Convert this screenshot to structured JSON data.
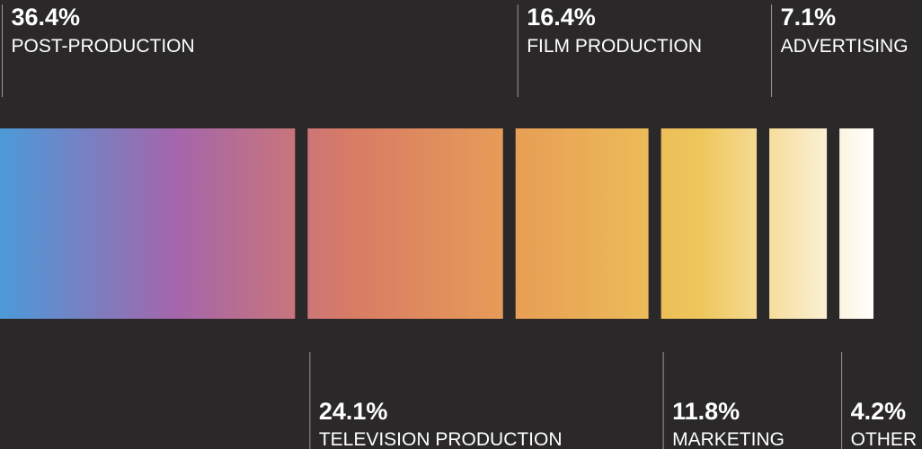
{
  "chart_data": {
    "type": "bar",
    "orientation": "horizontal-stacked",
    "unit": "%",
    "categories": [
      "POST-PRODUCTION",
      "TELEVISION PRODUCTION",
      "FILM PRODUCTION",
      "MARKETING",
      "ADVERTISING",
      "OTHER"
    ],
    "values": [
      36.4,
      24.1,
      16.4,
      11.8,
      7.1,
      4.2
    ],
    "value_labels": [
      "36.4%",
      "24.1%",
      "16.4%",
      "11.8%",
      "7.1%",
      "4.2%"
    ],
    "label_side": [
      "top",
      "bottom",
      "top",
      "bottom",
      "top",
      "bottom"
    ],
    "gradient_stops": [
      "#4c9ad8",
      "#a466ac",
      "#d87b66",
      "#e8a055",
      "#eec65a",
      "#ffffff"
    ],
    "background": "#2a2829"
  }
}
